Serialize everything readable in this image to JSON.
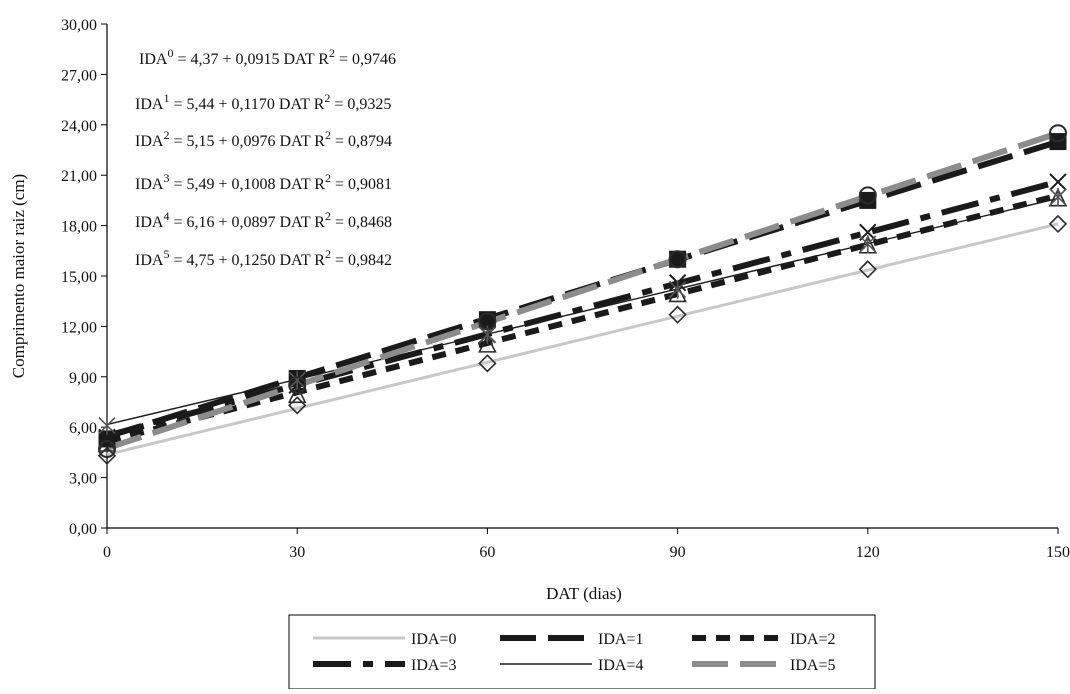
{
  "chart_data": {
    "type": "line",
    "xlabel": "DAT (dias)",
    "ylabel": "Comprimento maior raiz (cm)",
    "x": [
      0,
      30,
      60,
      90,
      120,
      150
    ],
    "x_ticks": [
      "0",
      "30",
      "60",
      "90",
      "120",
      "150"
    ],
    "y_ticks": [
      "0,00",
      "3,00",
      "6,00",
      "9,00",
      "12,00",
      "15,00",
      "18,00",
      "21,00",
      "24,00",
      "27,00",
      "30,00"
    ],
    "xlim": [
      0,
      150
    ],
    "ylim": [
      0,
      30
    ],
    "grid": false,
    "legend_position": "bottom",
    "series": [
      {
        "name": "IDA=0",
        "values": [
          4.37,
          7.12,
          9.86,
          12.61,
          15.35,
          18.1
        ],
        "color": "#c8c8c8",
        "dash": "solid",
        "width": 3,
        "marker": "diamond",
        "observed": [
          4.3,
          7.3,
          9.8,
          12.7,
          15.4,
          18.1
        ]
      },
      {
        "name": "IDA=1",
        "values": [
          5.44,
          8.95,
          12.46,
          15.97,
          19.48,
          22.99
        ],
        "color": "#1a1a1a",
        "dash": "longdash",
        "width": 6,
        "marker": "square",
        "observed": [
          5.3,
          8.9,
          12.4,
          16.0,
          19.5,
          23.0
        ]
      },
      {
        "name": "IDA=2",
        "values": [
          5.15,
          8.08,
          11.01,
          13.93,
          16.86,
          19.79
        ],
        "color": "#1a1a1a",
        "dash": "shortdash",
        "width": 6,
        "marker": "triangle",
        "observed": [
          5.0,
          7.9,
          10.9,
          13.9,
          16.8,
          19.6
        ]
      },
      {
        "name": "IDA=3",
        "values": [
          5.49,
          8.51,
          11.54,
          14.56,
          17.59,
          20.61
        ],
        "color": "#1a1a1a",
        "dash": "dashdot",
        "width": 6,
        "marker": "x",
        "observed": [
          5.4,
          8.5,
          11.5,
          14.6,
          17.6,
          20.6
        ]
      },
      {
        "name": "IDA=4",
        "values": [
          6.16,
          8.85,
          11.54,
          14.23,
          16.92,
          19.62
        ],
        "color": "#1a1a1a",
        "dash": "solid",
        "width": 1.4,
        "marker": "asterisk",
        "observed": [
          6.1,
          8.8,
          11.5,
          14.2,
          16.9,
          19.7
        ]
      },
      {
        "name": "IDA=5",
        "values": [
          4.75,
          8.5,
          12.25,
          16.0,
          19.75,
          23.5
        ],
        "color": "#8c8c8c",
        "dash": "longdash",
        "width": 6,
        "marker": "circle",
        "observed": [
          4.7,
          8.5,
          12.3,
          16.0,
          19.8,
          23.5
        ]
      }
    ],
    "annotations": [
      {
        "label": "IDA",
        "sup": "0",
        "rest": " = 4,37 + 0,0915 DAT R",
        "r2sup": "2",
        "r2": " = 0,9746"
      },
      {
        "label": "IDA",
        "sup": "1",
        "rest": " = 5,44 + 0,1170 DAT R",
        "r2sup": "2",
        "r2": " = 0,9325"
      },
      {
        "label": "IDA",
        "sup": "2",
        "rest": " = 5,15 + 0,0976 DAT R",
        "r2sup": "2",
        "r2": " = 0,8794"
      },
      {
        "label": "IDA",
        "sup": "3",
        "rest": " = 5,49 + 0,1008 DAT R",
        "r2sup": "2",
        "r2": " = 0,9081"
      },
      {
        "label": "IDA",
        "sup": "4",
        "rest": " = 6,16 + 0,0897 DAT R",
        "r2sup": "2",
        "r2": " = 0,8468"
      },
      {
        "label": "IDA",
        "sup": "5",
        "rest": " = 4,75 + 0,1250 DAT  R",
        "r2sup": "2",
        "r2": " = 0,9842"
      }
    ]
  }
}
